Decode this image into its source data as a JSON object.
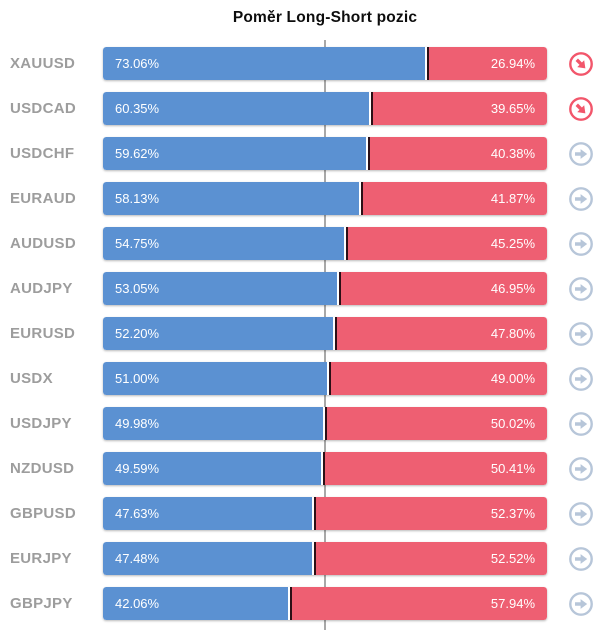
{
  "title": "Poměr Long-Short pozic",
  "colors": {
    "long_blue": "#5b91d2",
    "short_red": "#ee5f72",
    "separator_dark": "#2b0f16",
    "center_gridline_gray": "#a8a8a8",
    "symbol_label_gray": "#9d9d9d",
    "icon_red": "#f2566b",
    "icon_gray_blue": "#b7c6d9",
    "bar_text_white": "#ffffff",
    "title_color": "#0d0d0d"
  },
  "icons": {
    "down_trend": "trend-down-right-arrow-circle-icon",
    "flat_trend": "trend-right-arrow-circle-icon"
  },
  "chart_data": {
    "type": "bar",
    "variant": "horizontal-stacked",
    "title": "Poměr Long-Short pozic",
    "categories": [
      "XAUUSD",
      "USDCAD",
      "USDCHF",
      "EURAUD",
      "AUDUSD",
      "AUDJPY",
      "EURUSD",
      "USDX",
      "USDJPY",
      "NZDUSD",
      "GBPUSD",
      "EURJPY",
      "GBPJPY"
    ],
    "series": [
      {
        "name": "Long",
        "color": "#5b91d2",
        "values": [
          73.06,
          60.35,
          59.62,
          58.13,
          54.75,
          53.05,
          52.2,
          51.0,
          49.98,
          49.59,
          47.63,
          47.48,
          42.06
        ]
      },
      {
        "name": "Short",
        "color": "#ee5f72",
        "values": [
          26.94,
          39.65,
          40.38,
          41.87,
          45.25,
          46.95,
          47.8,
          49.0,
          50.02,
          50.41,
          52.37,
          52.52,
          57.94
        ]
      }
    ],
    "xlim": [
      0,
      100
    ],
    "center_gridline": 50,
    "grid": "single-vertical-50pct-line",
    "legend_position": "none",
    "data_labels": "inside-both-ends-percent"
  },
  "rows": [
    {
      "symbol": "XAUUSD",
      "long_label": "73.06%",
      "short_label": "26.94%",
      "long_value": 73.06,
      "short_value": 26.94,
      "trend": "down"
    },
    {
      "symbol": "USDCAD",
      "long_label": "60.35%",
      "short_label": "39.65%",
      "long_value": 60.35,
      "short_value": 39.65,
      "trend": "down"
    },
    {
      "symbol": "USDCHF",
      "long_label": "59.62%",
      "short_label": "40.38%",
      "long_value": 59.62,
      "short_value": 40.38,
      "trend": "flat"
    },
    {
      "symbol": "EURAUD",
      "long_label": "58.13%",
      "short_label": "41.87%",
      "long_value": 58.13,
      "short_value": 41.87,
      "trend": "flat"
    },
    {
      "symbol": "AUDUSD",
      "long_label": "54.75%",
      "short_label": "45.25%",
      "long_value": 54.75,
      "short_value": 45.25,
      "trend": "flat"
    },
    {
      "symbol": "AUDJPY",
      "long_label": "53.05%",
      "short_label": "46.95%",
      "long_value": 53.05,
      "short_value": 46.95,
      "trend": "flat"
    },
    {
      "symbol": "EURUSD",
      "long_label": "52.20%",
      "short_label": "47.80%",
      "long_value": 52.2,
      "short_value": 47.8,
      "trend": "flat"
    },
    {
      "symbol": "USDX",
      "long_label": "51.00%",
      "short_label": "49.00%",
      "long_value": 51.0,
      "short_value": 49.0,
      "trend": "flat"
    },
    {
      "symbol": "USDJPY",
      "long_label": "49.98%",
      "short_label": "50.02%",
      "long_value": 49.98,
      "short_value": 50.02,
      "trend": "flat"
    },
    {
      "symbol": "NZDUSD",
      "long_label": "49.59%",
      "short_label": "50.41%",
      "long_value": 49.59,
      "short_value": 50.41,
      "trend": "flat"
    },
    {
      "symbol": "GBPUSD",
      "long_label": "47.63%",
      "short_label": "52.37%",
      "long_value": 47.63,
      "short_value": 52.37,
      "trend": "flat"
    },
    {
      "symbol": "EURJPY",
      "long_label": "47.48%",
      "short_label": "52.52%",
      "long_value": 47.48,
      "short_value": 52.52,
      "trend": "flat"
    },
    {
      "symbol": "GBPJPY",
      "long_label": "42.06%",
      "short_label": "57.94%",
      "long_value": 42.06,
      "short_value": 57.94,
      "trend": "flat"
    }
  ]
}
